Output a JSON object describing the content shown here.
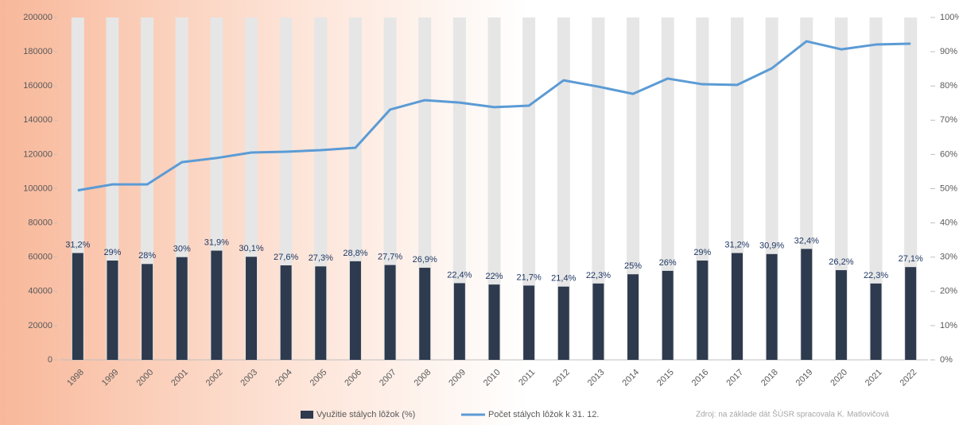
{
  "chart_data": {
    "type": "bar-line",
    "categories": [
      "1998",
      "1999",
      "2000",
      "2001",
      "2002",
      "2003",
      "2004",
      "2005",
      "2006",
      "2007",
      "2008",
      "2009",
      "2010",
      "2011",
      "2012",
      "2013",
      "2014",
      "2015",
      "2016",
      "2017",
      "2018",
      "2019",
      "2020",
      "2021",
      "2022"
    ],
    "series": [
      {
        "name": "Využitie stálych lôžok (%)",
        "type": "bar",
        "axis": "y2",
        "color": "#2e3a4e",
        "values": [
          31.2,
          29,
          28,
          30,
          31.9,
          30.1,
          27.6,
          27.3,
          28.8,
          27.7,
          26.9,
          22.4,
          22,
          21.7,
          21.4,
          22.3,
          25,
          26,
          29,
          31.2,
          30.9,
          32.4,
          26.2,
          22.3,
          27.1
        ],
        "value_labels": [
          "31,2%",
          "29%",
          "28%",
          "30%",
          "31,9%",
          "30,1%",
          "27,6%",
          "27,3%",
          "28,8%",
          "27,7%",
          "26,9%",
          "22,4%",
          "22%",
          "21,7%",
          "21,4%",
          "22,3%",
          "25%",
          "26%",
          "29%",
          "31,2%",
          "30,9%",
          "32,4%",
          "26,2%",
          "22,3%",
          "27,1%"
        ]
      },
      {
        "name": "Počet stálych lôžok k 31. 12.",
        "type": "line",
        "axis": "y",
        "color": "#5b9bd5",
        "values": [
          99000,
          102500,
          102500,
          115500,
          117900,
          121100,
          121600,
          122500,
          123900,
          146200,
          151700,
          150300,
          147600,
          148500,
          163300,
          159600,
          155400,
          164300,
          161000,
          160600,
          170300,
          186100,
          181400,
          184200,
          184700
        ]
      }
    ],
    "ylim": [
      0,
      200000
    ],
    "yticks": [
      0,
      20000,
      40000,
      60000,
      80000,
      100000,
      120000,
      140000,
      160000,
      180000,
      200000
    ],
    "y2lim": [
      0,
      100
    ],
    "y2ticks": [
      {
        "value": 0,
        "label": "0%"
      },
      {
        "value": 10,
        "label": "10%"
      },
      {
        "value": 20,
        "label": "20%"
      },
      {
        "value": 30,
        "label": "30%"
      },
      {
        "value": 40,
        "label": "40%"
      },
      {
        "value": 50,
        "label": "50%"
      },
      {
        "value": 60,
        "label": "60%"
      },
      {
        "value": 70,
        "label": "70%"
      },
      {
        "value": 80,
        "label": "80%"
      },
      {
        "value": 90,
        "label": "90%"
      },
      {
        "value": 100,
        "label": "100%"
      }
    ],
    "legend": "bottom",
    "annotation": "Zdroj: na základe dát ŠÚSR spracovala K. Matlovičová"
  }
}
